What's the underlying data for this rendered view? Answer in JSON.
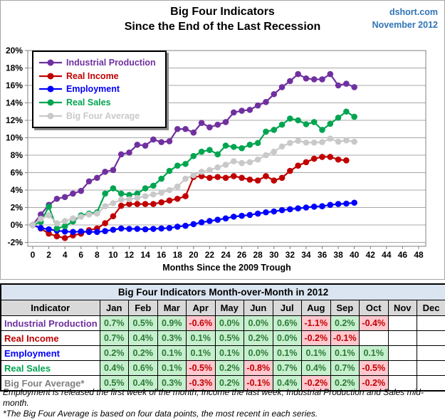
{
  "header": {
    "title_line1": "Big Four Indicators",
    "title_line2": "Since the End of the Last Recession",
    "source_line1": "dshort.com",
    "source_line2": "November 2012",
    "source_color": "#2E74B5"
  },
  "chart_data": {
    "type": "line",
    "title": "Big Four Indicators Since the End of the Last Recession",
    "xlabel": "Months Since the 2009 Trough",
    "ylabel": "",
    "x_range": [
      0,
      48
    ],
    "y_range": [
      -2,
      20
    ],
    "grid": true,
    "legend_position": "top-left",
    "x_tick_labels": [
      "0",
      "2",
      "4",
      "6",
      "8",
      "10",
      "12",
      "14",
      "16",
      "18",
      "20",
      "22",
      "24",
      "26",
      "28",
      "30",
      "32",
      "34",
      "36",
      "38",
      "40",
      "42",
      "44",
      "46",
      "48"
    ],
    "y_tick_labels": [
      "20%",
      "18%",
      "16%",
      "14%",
      "12%",
      "10%",
      "8%",
      "6%",
      "4%",
      "2%",
      "0%",
      "-2%"
    ],
    "series": [
      {
        "name": "Industrial Production",
        "color": "#7030A0",
        "values": [
          0.0,
          1.2,
          2.3,
          3.0,
          3.2,
          3.6,
          3.9,
          5.0,
          5.4,
          6.1,
          6.3,
          8.1,
          8.3,
          9.2,
          9.1,
          9.8,
          9.5,
          9.6,
          11.0,
          11.0,
          10.6,
          11.7,
          11.2,
          11.5,
          11.8,
          12.9,
          13.1,
          13.2,
          13.7,
          14.1,
          15.0,
          15.8,
          16.5,
          17.3,
          16.8,
          16.7,
          16.7,
          17.3,
          16.0,
          16.2,
          15.8
        ]
      },
      {
        "name": "Real Income",
        "color": "#C00000",
        "values": [
          0.0,
          -0.4,
          -1.0,
          -1.3,
          -1.5,
          -1.2,
          -1.0,
          -0.6,
          -0.4,
          0.2,
          1.0,
          2.2,
          2.4,
          2.4,
          2.4,
          2.4,
          2.6,
          2.8,
          3.0,
          3.3,
          5.5,
          5.6,
          5.4,
          5.5,
          5.4,
          5.6,
          5.4,
          5.2,
          5.1,
          5.6,
          5.1,
          5.4,
          6.2,
          6.8,
          7.2,
          7.6,
          7.8,
          7.8,
          7.5,
          7.4
        ]
      },
      {
        "name": "Employment",
        "color": "#0000FF",
        "values": [
          0.0,
          -0.35,
          -0.5,
          -0.65,
          -0.75,
          -0.8,
          -0.75,
          -0.8,
          -0.8,
          -0.7,
          -0.55,
          -0.4,
          -0.45,
          -0.45,
          -0.5,
          -0.45,
          -0.4,
          -0.35,
          -0.2,
          -0.1,
          0.1,
          0.3,
          0.45,
          0.6,
          0.75,
          0.95,
          1.05,
          1.15,
          1.3,
          1.45,
          1.55,
          1.7,
          1.8,
          1.9,
          2.0,
          2.1,
          2.15,
          2.3,
          2.4,
          2.45,
          2.55
        ]
      },
      {
        "name": "Real Sales",
        "color": "#00A550",
        "values": [
          0.0,
          0.35,
          2.1,
          -0.4,
          -0.15,
          0.4,
          1.1,
          1.3,
          1.45,
          3.6,
          4.2,
          3.6,
          3.45,
          3.6,
          4.2,
          4.5,
          5.3,
          6.2,
          6.8,
          7.0,
          7.9,
          8.4,
          8.6,
          8.1,
          9.1,
          8.95,
          8.8,
          9.2,
          9.4,
          10.7,
          10.9,
          11.5,
          12.2,
          12.0,
          11.55,
          11.8,
          10.9,
          11.6,
          12.3,
          13.0,
          12.4
        ]
      },
      {
        "name": "Big Four Average",
        "color": "#C9C9C9",
        "values": [
          0.0,
          0.7,
          1.1,
          0.2,
          0.45,
          0.75,
          0.95,
          1.2,
          1.3,
          2.15,
          2.5,
          2.9,
          2.95,
          3.1,
          3.3,
          3.5,
          3.7,
          4.0,
          4.4,
          5.3,
          5.7,
          6.1,
          6.3,
          6.6,
          6.9,
          7.3,
          7.1,
          7.2,
          7.5,
          8.0,
          8.4,
          9.0,
          9.4,
          9.65,
          9.45,
          9.45,
          9.5,
          9.9,
          9.55,
          9.7,
          9.55
        ]
      }
    ]
  },
  "table": {
    "title": "Big Four Indicators Month-over-Month in 2012",
    "columns": [
      "Indicator",
      "Jan",
      "Feb",
      "Mar",
      "Apr",
      "May",
      "Jun",
      "Jul",
      "Aug",
      "Sep",
      "Oct",
      "Nov",
      "Dec"
    ],
    "rows": [
      {
        "label": "Industrial Production",
        "color": "#7030A0",
        "values": [
          "0.7%",
          "0.5%",
          "0.9%",
          "-0.6%",
          "0.0%",
          "0.0%",
          "0.6%",
          "-1.1%",
          "0.2%",
          "-0.4%",
          "",
          ""
        ]
      },
      {
        "label": "Real Income",
        "color": "#C00000",
        "values": [
          "0.7%",
          "0.4%",
          "0.3%",
          "0.1%",
          "0.5%",
          "0.2%",
          "0.0%",
          "-0.2%",
          "-0.1%",
          "",
          "",
          ""
        ]
      },
      {
        "label": "Employment",
        "color": "#0000FF",
        "values": [
          "0.2%",
          "0.2%",
          "0.1%",
          "0.1%",
          "0.1%",
          "0.0%",
          "0.1%",
          "0.1%",
          "0.1%",
          "0.1%",
          "",
          ""
        ]
      },
      {
        "label": "Real Sales",
        "color": "#00A550",
        "values": [
          "0.4%",
          "0.6%",
          "0.1%",
          "-0.5%",
          "0.2%",
          "-0.8%",
          "0.7%",
          "0.4%",
          "0.7%",
          "-0.5%",
          "",
          ""
        ]
      },
      {
        "label": "Big Four Average*",
        "color": "#808080",
        "values": [
          "0.5%",
          "0.4%",
          "0.3%",
          "-0.3%",
          "0.2%",
          "-0.1%",
          "0.4%",
          "-0.2%",
          "0.2%",
          "-0.2%",
          "",
          ""
        ]
      }
    ],
    "styles": {
      "title_bg": "#DBE5F1",
      "header_bg": "#D9D9D9",
      "positive_bg": "#C6EFCE",
      "positive_text": "#2C7A36",
      "negative_bg": "#FFC7CE",
      "negative_text": "#C00000"
    }
  },
  "footnotes": [
    "Employment is released the first week of the month, Income the last week, Industrial Production and Sales mid-month.",
    "*The Big Four Average is based on four data points, the most recent in each series."
  ]
}
